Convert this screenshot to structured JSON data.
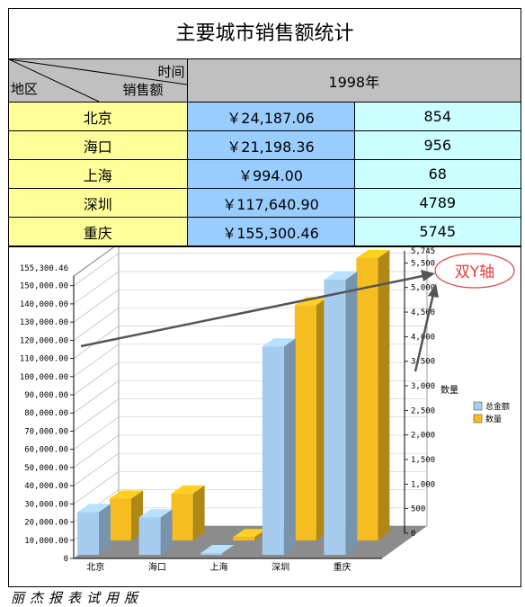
{
  "report": {
    "title": "主要城市销售额统计",
    "header": {
      "time_label": "时间",
      "region_label": "地区",
      "sales_label": "销售额",
      "year": "1998年"
    },
    "rows": [
      {
        "city": "北京",
        "amount": "￥24,187.06",
        "qty": "854"
      },
      {
        "city": "海口",
        "amount": "￥21,198.36",
        "qty": "956"
      },
      {
        "city": "上海",
        "amount": "￥994.00",
        "qty": "68"
      },
      {
        "city": "深圳",
        "amount": "￥117,640.90",
        "qty": "4789"
      },
      {
        "city": "重庆",
        "amount": "￥155,300.46",
        "qty": "5745"
      }
    ]
  },
  "chart_data": {
    "type": "bar",
    "categories": [
      "北京",
      "海口",
      "上海",
      "深圳",
      "重庆"
    ],
    "series": [
      {
        "name": "总金额",
        "axis": "left",
        "color": "#a6cdf0",
        "values": [
          24187.06,
          21198.36,
          994.0,
          117640.9,
          155300.46
        ]
      },
      {
        "name": "数量",
        "axis": "right",
        "color": "#f5bd1f",
        "values": [
          854,
          956,
          68,
          4789,
          5745
        ]
      }
    ],
    "y_left": {
      "range": [
        0,
        155300.46
      ],
      "ticks": [
        "0",
        "10,000.00",
        "20,000.00",
        "30,000.00",
        "40,000.00",
        "50,000.00",
        "60,000.00",
        "70,000.00",
        "80,000.00",
        "90,000.00",
        "100,000.00",
        "110,000.00",
        "120,000.00",
        "130,000.00",
        "140,000.00",
        "150,000.00"
      ],
      "max_label": "155,300.46"
    },
    "y_right": {
      "range": [
        0,
        5745
      ],
      "ticks": [
        "0",
        "500",
        "1,000",
        "1,500",
        "2,000",
        "2,500",
        "3,000",
        "3,500",
        "4,000",
        "4,500",
        "5,000",
        "5,500"
      ],
      "max_label": "5,745",
      "label": "数量"
    },
    "legend": {
      "position": "right",
      "items": [
        "总金额",
        "数量"
      ]
    },
    "annotation": "双Y轴",
    "style": "3d"
  },
  "footer": "丽杰报表试用版"
}
